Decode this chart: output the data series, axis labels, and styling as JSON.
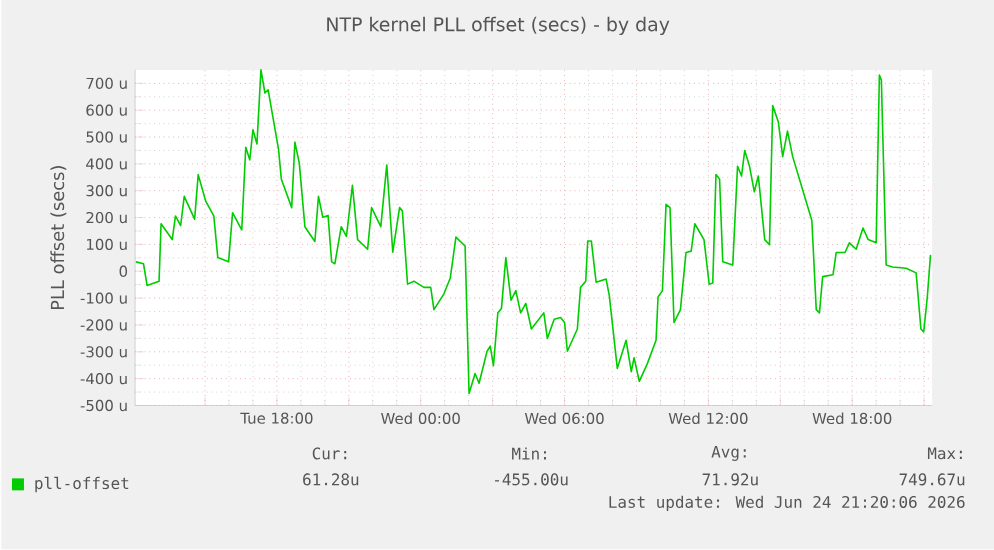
{
  "chart_data": {
    "type": "line",
    "title": "NTP kernel PLL offset (secs) - by day",
    "ylabel": "PLL offset (secs)",
    "x": [
      "2026-06-23T12:07",
      "2026-06-23T12:26",
      "2026-06-23T12:35",
      "2026-06-23T13:05",
      "2026-06-23T13:10",
      "2026-06-23T13:38",
      "2026-06-23T13:46",
      "2026-06-23T13:59",
      "2026-06-23T14:08",
      "2026-06-23T14:34",
      "2026-06-23T14:43",
      "2026-06-23T15:02",
      "2026-06-23T15:22",
      "2026-06-23T15:32",
      "2026-06-23T15:59",
      "2026-06-23T16:09",
      "2026-06-23T16:32",
      "2026-06-23T16:42",
      "2026-06-23T16:52",
      "2026-06-23T17:00",
      "2026-06-23T17:10",
      "2026-06-23T17:20",
      "2026-06-23T17:30",
      "2026-06-23T17:38",
      "2026-06-23T18:04",
      "2026-06-23T18:11",
      "2026-06-23T18:37",
      "2026-06-23T18:45",
      "2026-06-23T18:56",
      "2026-06-23T19:10",
      "2026-06-23T19:35",
      "2026-06-23T19:44",
      "2026-06-23T19:55",
      "2026-06-23T20:08",
      "2026-06-23T20:17",
      "2026-06-23T20:25",
      "2026-06-23T20:41",
      "2026-06-23T20:54",
      "2026-06-23T21:09",
      "2026-06-23T21:22",
      "2026-06-23T21:47",
      "2026-06-23T21:57",
      "2026-06-23T22:20",
      "2026-06-23T22:35",
      "2026-06-23T22:50",
      "2026-06-23T23:07",
      "2026-06-23T23:14",
      "2026-06-23T23:27",
      "2026-06-23T23:43",
      "2026-06-24T00:08",
      "2026-06-24T00:25",
      "2026-06-24T00:33",
      "2026-06-24T00:58",
      "2026-06-24T01:14",
      "2026-06-24T01:28",
      "2026-06-24T01:51",
      "2026-06-24T02:01",
      "2026-06-24T02:16",
      "2026-06-24T02:26",
      "2026-06-24T02:46",
      "2026-06-24T02:54",
      "2026-06-24T03:02",
      "2026-06-24T03:13",
      "2026-06-24T03:22",
      "2026-06-24T03:33",
      "2026-06-24T03:46",
      "2026-06-24T03:58",
      "2026-06-24T04:10",
      "2026-06-24T04:23",
      "2026-06-24T04:37",
      "2026-06-24T04:43",
      "2026-06-24T05:08",
      "2026-06-24T05:17",
      "2026-06-24T05:34",
      "2026-06-24T05:50",
      "2026-06-24T06:00",
      "2026-06-24T06:07",
      "2026-06-24T06:32",
      "2026-06-24T06:40",
      "2026-06-24T06:53",
      "2026-06-24T06:58",
      "2026-06-24T07:07",
      "2026-06-24T07:19",
      "2026-06-24T07:44",
      "2026-06-24T07:52",
      "2026-06-24T08:12",
      "2026-06-24T08:34",
      "2026-06-24T08:47",
      "2026-06-24T08:54",
      "2026-06-24T09:07",
      "2026-06-24T09:27",
      "2026-06-24T09:49",
      "2026-06-24T09:54",
      "2026-06-24T10:05",
      "2026-06-24T10:14",
      "2026-06-24T10:24",
      "2026-06-24T10:34",
      "2026-06-24T10:50",
      "2026-06-24T11:04",
      "2026-06-24T11:17",
      "2026-06-24T11:26",
      "2026-06-24T11:49",
      "2026-06-24T12:02",
      "2026-06-24T12:11",
      "2026-06-24T12:19",
      "2026-06-24T12:28",
      "2026-06-24T12:36",
      "2026-06-24T13:01",
      "2026-06-24T13:13",
      "2026-06-24T13:23",
      "2026-06-24T13:31",
      "2026-06-24T13:43",
      "2026-06-24T13:55",
      "2026-06-24T14:05",
      "2026-06-24T14:21",
      "2026-06-24T14:33",
      "2026-06-24T14:41",
      "2026-06-24T14:55",
      "2026-06-24T15:06",
      "2026-06-24T15:18",
      "2026-06-24T15:31",
      "2026-06-24T16:19",
      "2026-06-24T16:30",
      "2026-06-24T16:38",
      "2026-06-24T16:46",
      "2026-06-24T17:12",
      "2026-06-24T17:20",
      "2026-06-24T17:42",
      "2026-06-24T17:53",
      "2026-06-24T18:10",
      "2026-06-24T18:27",
      "2026-06-24T18:40",
      "2026-06-24T19:00",
      "2026-06-24T19:08",
      "2026-06-24T19:13",
      "2026-06-24T19:25",
      "2026-06-24T19:41",
      "2026-06-24T20:15",
      "2026-06-24T20:40",
      "2026-06-24T20:52",
      "2026-06-24T20:59",
      "2026-06-24T21:08",
      "2026-06-24T21:16"
    ],
    "series": [
      {
        "name": "pll-offset",
        "color": "#00cc00",
        "values": [
          35,
          28,
          -53,
          -37,
          177,
          118,
          206,
          170,
          279,
          194,
          360,
          260,
          206,
          51,
          35,
          218,
          154,
          462,
          415,
          527,
          474,
          750,
          664,
          676,
          455,
          344,
          237,
          481,
          403,
          166,
          111,
          279,
          201,
          208,
          35,
          28,
          166,
          130,
          320,
          118,
          82,
          237,
          166,
          396,
          71,
          237,
          225,
          -48,
          -37,
          -60,
          -60,
          -143,
          -84,
          -25,
          127,
          94,
          -455,
          -381,
          -417,
          -298,
          -279,
          -352,
          -155,
          -139,
          51,
          -108,
          -72,
          -155,
          -120,
          -215,
          -203,
          -155,
          -250,
          -179,
          -172,
          -191,
          -298,
          -215,
          -60,
          -37,
          113,
          113,
          -41,
          -29,
          -91,
          -362,
          -257,
          -374,
          -322,
          -410,
          -345,
          -257,
          -96,
          -72,
          249,
          237,
          -191,
          -143,
          70,
          75,
          177,
          118,
          -48,
          -44,
          360,
          344,
          35,
          23,
          391,
          355,
          450,
          391,
          296,
          355,
          118,
          99,
          617,
          557,
          427,
          522,
          427,
          189,
          -143,
          -155,
          -20,
          -13,
          70,
          70,
          106,
          82,
          161,
          118,
          106,
          731,
          712,
          23,
          16,
          11,
          -6,
          -215,
          -226,
          -96,
          61
        ]
      }
    ],
    "xlim": [
      "2026-06-23T12:05",
      "2026-06-24T21:20"
    ],
    "xticks": [
      {
        "value": "2026-06-23T15:00",
        "label": null
      },
      {
        "value": "2026-06-23T18:00",
        "label": "Tue 18:00"
      },
      {
        "value": "2026-06-23T21:00",
        "label": null
      },
      {
        "value": "2026-06-24T00:00",
        "label": "Wed 00:00"
      },
      {
        "value": "2026-06-24T03:00",
        "label": null
      },
      {
        "value": "2026-06-24T06:00",
        "label": "Wed 06:00"
      },
      {
        "value": "2026-06-24T09:00",
        "label": null
      },
      {
        "value": "2026-06-24T12:00",
        "label": "Wed 12:00"
      },
      {
        "value": "2026-06-24T15:00",
        "label": null
      },
      {
        "value": "2026-06-24T18:00",
        "label": "Wed 18:00"
      },
      {
        "value": "2026-06-24T21:00",
        "label": null
      }
    ],
    "ylim": [
      -500,
      750
    ],
    "yticks": [
      {
        "value": -500,
        "label": "-500 u"
      },
      {
        "value": -400,
        "label": "-400 u"
      },
      {
        "value": -300,
        "label": "-300 u"
      },
      {
        "value": -200,
        "label": "-200 u"
      },
      {
        "value": -100,
        "label": "-100 u"
      },
      0,
      {
        "value": 100,
        "label": "100 u"
      },
      {
        "value": 200,
        "label": "200 u"
      },
      {
        "value": 300,
        "label": "300 u"
      },
      {
        "value": 400,
        "label": "400 u"
      },
      {
        "value": 500,
        "label": "500 u"
      },
      {
        "value": 600,
        "label": "600 u"
      },
      {
        "value": 700,
        "label": "700 u"
      }
    ],
    "grid": true,
    "legend": "bottom",
    "marker": "none",
    "line_style": "solid",
    "annotations": [
      "Cur:",
      "61.28u",
      "Min:",
      "-455.00u",
      "Avg:",
      "71.92u",
      "Max:",
      "749.67u",
      "Last update: Wed Jun 24 21:20:06 2026"
    ]
  }
}
